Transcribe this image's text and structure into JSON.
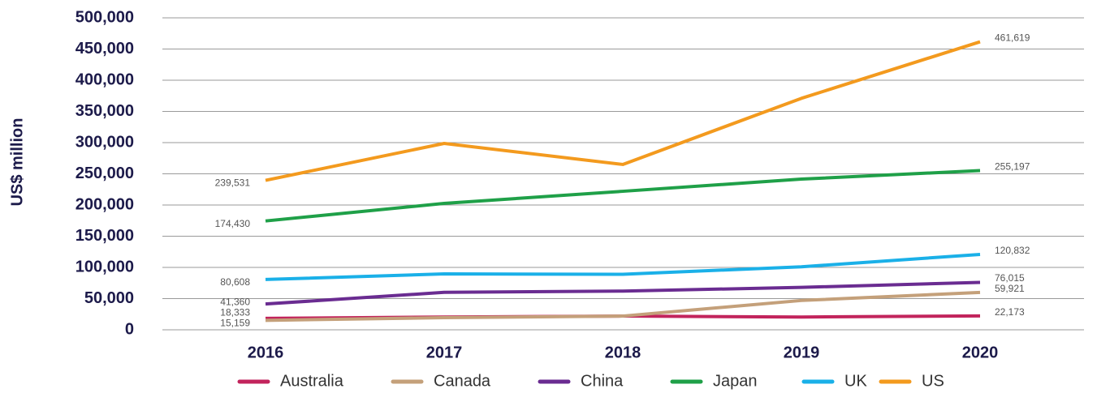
{
  "chart_data": {
    "type": "line",
    "y_label": "US$ million",
    "categories": [
      "2016",
      "2017",
      "2018",
      "2019",
      "2020"
    ],
    "series": [
      {
        "name": "Australia",
        "color": "#c2245c",
        "values": [
          18333,
          20500,
          22000,
          20500,
          22173
        ],
        "value_labels": [
          "18,333",
          null,
          null,
          null,
          "22,173"
        ]
      },
      {
        "name": "Canada",
        "color": "#c4a07a",
        "values": [
          15159,
          19500,
          22000,
          47000,
          59921
        ],
        "value_labels": [
          "15,159",
          null,
          null,
          null,
          "59,921"
        ]
      },
      {
        "name": "China",
        "color": "#6a2c91",
        "values": [
          41360,
          60000,
          62000,
          68000,
          76015
        ],
        "value_labels": [
          "41,360",
          null,
          null,
          null,
          "76,015"
        ]
      },
      {
        "name": "Japan",
        "color": "#1fa048",
        "values": [
          174430,
          202600,
          222000,
          241500,
          255197
        ],
        "value_labels": [
          "174,430",
          null,
          null,
          null,
          "255,197"
        ]
      },
      {
        "name": "UK",
        "color": "#1ab0e8",
        "values": [
          80608,
          89600,
          89000,
          101000,
          120832
        ],
        "value_labels": [
          "80,608",
          null,
          null,
          null,
          "120,832"
        ]
      },
      {
        "name": "US",
        "color": "#f39a1e",
        "values": [
          239531,
          298700,
          265000,
          371000,
          461619
        ],
        "value_labels": [
          "239,531",
          null,
          null,
          null,
          "461,619"
        ]
      }
    ],
    "ylim": [
      0,
      500000
    ],
    "yticks": [
      0,
      {
        "value": 50000,
        "label": "50,000"
      },
      {
        "value": 100000,
        "label": "100,000"
      },
      {
        "value": 150000,
        "label": "150,000"
      },
      {
        "value": 200000,
        "label": "200,000"
      },
      {
        "value": 250000,
        "label": "250,000"
      },
      {
        "value": 300000,
        "label": "300,000"
      },
      {
        "value": 350000,
        "label": "350,000"
      },
      {
        "value": 400000,
        "label": "400,000"
      },
      {
        "value": 450000,
        "label": "450,000"
      },
      {
        "value": 500000,
        "label": "500,000"
      }
    ],
    "grid": true,
    "legend": "bottom"
  }
}
